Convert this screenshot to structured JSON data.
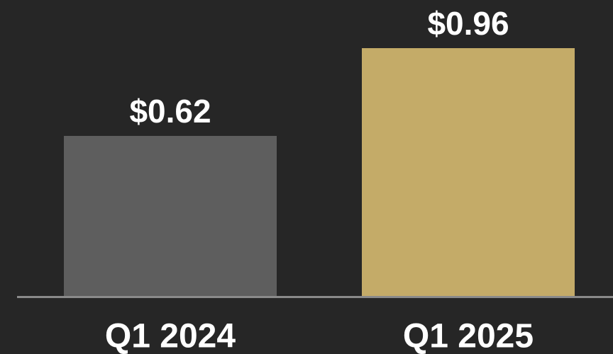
{
  "chart_data": {
    "type": "bar",
    "categories": [
      "Q1 2024",
      "Q1 2025"
    ],
    "values": [
      0.62,
      0.96
    ],
    "value_labels": [
      "$0.62",
      "$0.96"
    ],
    "colors": [
      "#5e5e5e",
      "#c4ab68"
    ]
  }
}
